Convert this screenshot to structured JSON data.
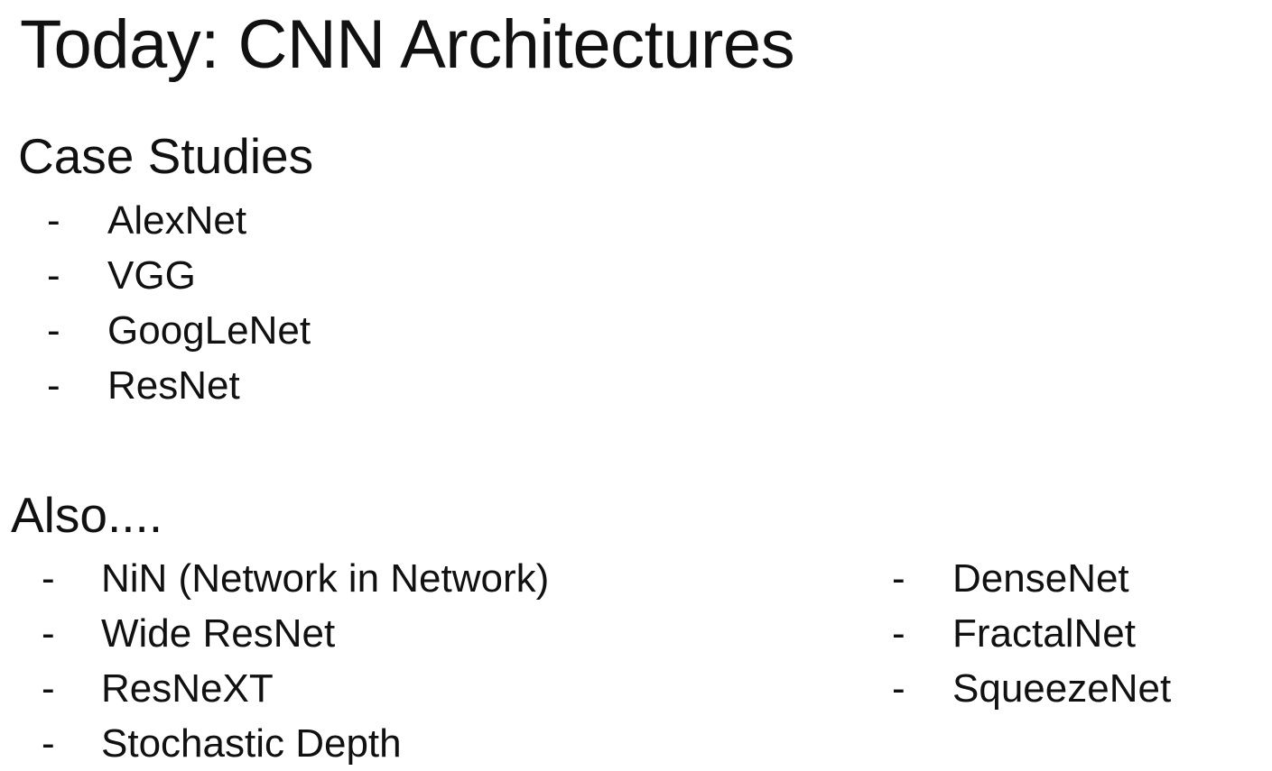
{
  "slide": {
    "title": "Today: CNN Architectures",
    "case_studies": {
      "heading": "Case Studies",
      "items": [
        "AlexNet",
        "VGG",
        "GoogLeNet",
        "ResNet"
      ]
    },
    "also": {
      "heading": "Also....",
      "left_items": [
        "NiN (Network in Network)",
        "Wide ResNet",
        "ResNeXT",
        "Stochastic Depth"
      ],
      "right_items": [
        "DenseNet",
        "FractalNet",
        "SqueezeNet"
      ]
    },
    "bullet_marker": "-"
  }
}
